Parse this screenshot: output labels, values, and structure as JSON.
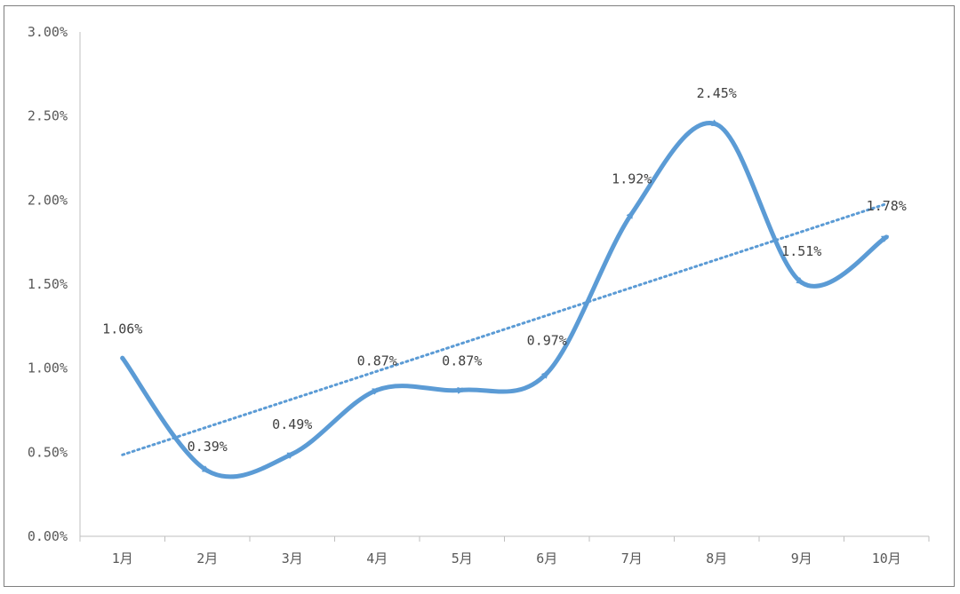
{
  "colors": {
    "series": "#5b9bd5",
    "trend": "#5b9bd5",
    "axis": "#bfbfbf",
    "text": "#595959"
  },
  "chart_data": {
    "type": "line",
    "title": "",
    "xlabel": "",
    "ylabel": "",
    "categories": [
      "1月",
      "2月",
      "3月",
      "4月",
      "5月",
      "6月",
      "7月",
      "8月",
      "9月",
      "10月"
    ],
    "series": [
      {
        "values": [
          1.06,
          0.39,
          0.49,
          0.87,
          0.87,
          0.97,
          1.92,
          2.45,
          1.51,
          1.78
        ],
        "smooth": true,
        "markers": "arrow"
      }
    ],
    "data_labels": [
      "1.06%",
      "0.39%",
      "0.49%",
      "0.87%",
      "0.87%",
      "0.97%",
      "1.92%",
      "2.45%",
      "1.51%",
      "1.78%"
    ],
    "trendline": {
      "type": "linear",
      "style": "dotted"
    },
    "ylim": [
      0,
      3.0
    ],
    "y_ticks": [
      "0.00%",
      "0.50%",
      "1.00%",
      "1.50%",
      "2.00%",
      "2.50%",
      "3.00%"
    ],
    "grid": false,
    "legend": "none"
  }
}
